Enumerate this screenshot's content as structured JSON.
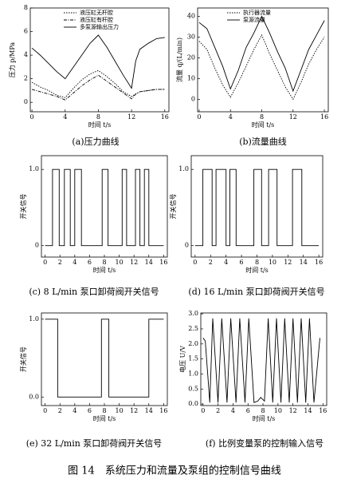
{
  "chart_data": [
    {
      "type": "line",
      "caption": "(a)压力曲线",
      "xlabel": "时间 t/s",
      "ylabel": "压力 p/MPa",
      "xlim": [
        -0.2,
        16.5
      ],
      "ylim": [
        -0.8,
        8
      ],
      "xticks": [
        0,
        4,
        8,
        12,
        16
      ],
      "yticks": [
        0,
        2,
        4,
        6,
        8
      ],
      "legend": "upper center",
      "series": [
        {
          "name": "液压缸无杆腔",
          "color": "#000000",
          "line_style": "dotted",
          "x": [
            0,
            1,
            2,
            3,
            4,
            5,
            6,
            7,
            8,
            9,
            10,
            11,
            12,
            12.5,
            13,
            14,
            15,
            16
          ],
          "values": [
            1.7,
            1.3,
            1.0,
            0.6,
            0.4,
            1.2,
            1.9,
            2.4,
            2.7,
            2.2,
            1.6,
            0.9,
            0.5,
            0.7,
            0.9,
            1.0,
            1.1,
            1.1
          ]
        },
        {
          "name": "液压缸有杆腔",
          "color": "#000000",
          "line_style": "dashdot",
          "x": [
            0,
            1,
            2,
            3,
            4,
            5,
            6,
            7,
            8,
            9,
            10,
            11,
            12,
            12.5,
            13,
            14,
            15,
            16
          ],
          "values": [
            1.1,
            0.9,
            0.7,
            0.5,
            0.2,
            0.8,
            1.4,
            1.9,
            2.3,
            1.8,
            1.3,
            0.8,
            0.3,
            0.7,
            0.9,
            1.0,
            1.1,
            1.1
          ]
        },
        {
          "name": "多泵源输出压力",
          "color": "#000000",
          "line_style": "solid",
          "x": [
            0,
            1,
            2,
            3,
            4,
            5,
            6,
            7,
            8,
            9,
            10,
            11,
            12,
            12.5,
            13,
            14,
            15,
            16
          ],
          "values": [
            4.6,
            4.0,
            3.3,
            2.6,
            2.0,
            3.0,
            4.0,
            5.0,
            5.7,
            4.7,
            3.5,
            2.3,
            1.2,
            3.5,
            4.5,
            5.0,
            5.4,
            5.5
          ]
        }
      ]
    },
    {
      "type": "line",
      "caption": "(b)流量曲线",
      "xlabel": "时间 t/s",
      "ylabel": "流量 q/(L/min)",
      "xlim": [
        -0.2,
        16.5
      ],
      "ylim": [
        -6,
        44
      ],
      "xticks": [
        0,
        4,
        8,
        12,
        16
      ],
      "yticks": [
        0,
        10,
        20,
        30,
        40
      ],
      "legend": "upper center",
      "series": [
        {
          "name": "执行器流量",
          "color": "#000000",
          "line_style": "dotted",
          "x": [
            0,
            1,
            2,
            3,
            4,
            5,
            6,
            7,
            8,
            9,
            10,
            11,
            12,
            13,
            14,
            15,
            16
          ],
          "values": [
            28,
            24,
            15,
            7,
            1,
            8,
            16,
            24,
            31,
            22,
            14,
            6,
            0,
            8,
            17,
            24,
            30
          ]
        },
        {
          "name": "泵源流量",
          "color": "#000000",
          "line_style": "solid",
          "x": [
            0,
            1,
            2,
            3,
            4,
            5,
            6,
            7,
            8,
            9,
            10,
            11,
            12,
            13,
            14,
            15,
            16
          ],
          "values": [
            37,
            34,
            25,
            16,
            5,
            14,
            25,
            32,
            40,
            32,
            23,
            15,
            4,
            14,
            24,
            31,
            38
          ]
        }
      ]
    },
    {
      "type": "line",
      "caption": "(c) 8 L/min 泵口卸荷阀开关信号",
      "xlabel": "时间 t/s",
      "ylabel": "开关信号",
      "xlim": [
        -0.5,
        16.5
      ],
      "ylim": [
        -0.15,
        1.18
      ],
      "xticks": [
        0,
        2,
        4,
        6,
        8,
        10,
        12,
        14,
        16
      ],
      "yticks": [
        0,
        {
          "value": 1,
          "label": "1.0"
        }
      ],
      "series": [
        {
          "color": "#000000",
          "line_style": "solid",
          "x": [
            0,
            1.0,
            1.0,
            1.9,
            1.9,
            2.6,
            2.6,
            3.4,
            3.4,
            4.0,
            4.0,
            4.9,
            4.9,
            7.7,
            7.7,
            8.5,
            8.5,
            10.4,
            10.4,
            11.0,
            11.0,
            12.2,
            12.2,
            12.8,
            12.8,
            13.4,
            13.4,
            14.0,
            14.0,
            16
          ],
          "values": [
            0,
            0,
            1,
            1,
            0,
            0,
            1,
            1,
            0,
            0,
            1,
            1,
            0,
            0,
            1,
            1,
            0,
            0,
            1,
            1,
            0,
            0,
            1,
            1,
            0,
            0,
            1,
            1,
            0,
            0
          ]
        }
      ]
    },
    {
      "type": "line",
      "caption": "(d) 16 L/min 泵口卸荷阀开关信号",
      "xlabel": "时间 t/s",
      "ylabel": "开关信号",
      "xlim": [
        -0.5,
        16.5
      ],
      "ylim": [
        -0.15,
        1.18
      ],
      "xticks": [
        0,
        2,
        4,
        6,
        8,
        10,
        12,
        14,
        16
      ],
      "yticks": [
        0,
        {
          "value": 1,
          "label": "1.0"
        }
      ],
      "series": [
        {
          "color": "#000000",
          "line_style": "solid",
          "x": [
            0,
            1.0,
            1.0,
            2.2,
            2.2,
            2.7,
            2.7,
            4.0,
            4.0,
            4.5,
            4.5,
            5.3,
            5.3,
            7.6,
            7.6,
            8.6,
            8.6,
            9.5,
            9.5,
            10.6,
            10.6,
            12.6,
            12.6,
            13.8,
            13.8,
            16
          ],
          "values": [
            0,
            0,
            1,
            1,
            0,
            0,
            1,
            1,
            0,
            0,
            1,
            1,
            0,
            0,
            1,
            1,
            0,
            0,
            1,
            1,
            0,
            0,
            1,
            1,
            0,
            0
          ]
        }
      ]
    },
    {
      "type": "line",
      "caption": "(e) 32 L/min 泵口卸荷阀开关信号",
      "xlabel": "时间 t/s",
      "ylabel": "开关信号",
      "xlim": [
        -0.5,
        16.5
      ],
      "ylim": [
        -0.11,
        1.08
      ],
      "xticks": [
        0,
        2,
        4,
        6,
        8,
        10,
        12,
        14,
        16
      ],
      "yticks": [
        {
          "value": 0,
          "label": "0.0"
        },
        {
          "value": 1,
          "label": "1.0"
        }
      ],
      "series": [
        {
          "color": "#000000",
          "line_style": "solid",
          "x": [
            0,
            1.7,
            1.7,
            7.6,
            7.6,
            8.6,
            8.6,
            14.0,
            14.0,
            16
          ],
          "values": [
            1,
            1,
            0,
            0,
            1,
            1,
            0,
            0,
            1,
            1
          ]
        }
      ]
    },
    {
      "type": "line",
      "caption": "(f) 比例变量泵的控制输入信号",
      "xlabel": "时间 t/s",
      "ylabel": "电压 U/V",
      "xlim": [
        -0.3,
        16.5
      ],
      "ylim": [
        -0.05,
        3.03
      ],
      "xticks": [
        0,
        2,
        4,
        6,
        8,
        10,
        12,
        14,
        16
      ],
      "yticks": [
        {
          "value": 0,
          "label": "0.0"
        },
        {
          "value": 0.5,
          "label": "0.5"
        },
        {
          "value": 1,
          "label": "1.0"
        },
        {
          "value": 1.5,
          "label": "1.5"
        },
        {
          "value": 2,
          "label": "2.0"
        },
        {
          "value": 2.5,
          "label": "2.5"
        },
        {
          "value": 3,
          "label": "3.0"
        }
      ],
      "series": [
        {
          "color": "#000000",
          "line_style": "solid",
          "x": [
            0,
            0.3,
            0.9,
            1.3,
            2.0,
            2.5,
            3.2,
            3.7,
            4.4,
            4.9,
            5.6,
            6.1,
            6.8,
            7.3,
            7.7,
            8.2,
            8.7,
            9.3,
            9.8,
            10.4,
            10.9,
            11.5,
            12.0,
            12.6,
            13.1,
            13.7,
            14.2,
            14.8,
            15.6
          ],
          "values": [
            2.2,
            2.1,
            0.05,
            2.85,
            0.05,
            2.85,
            0.05,
            2.85,
            0.05,
            2.85,
            0.05,
            2.85,
            0.05,
            0.1,
            0.22,
            0.1,
            2.85,
            0.05,
            2.85,
            0.05,
            2.85,
            0.05,
            2.85,
            0.05,
            2.85,
            0.05,
            2.85,
            0.05,
            2.2
          ]
        }
      ]
    }
  ],
  "figure_caption": "图 14　系统压力和流量及泵组的控制信号曲线"
}
